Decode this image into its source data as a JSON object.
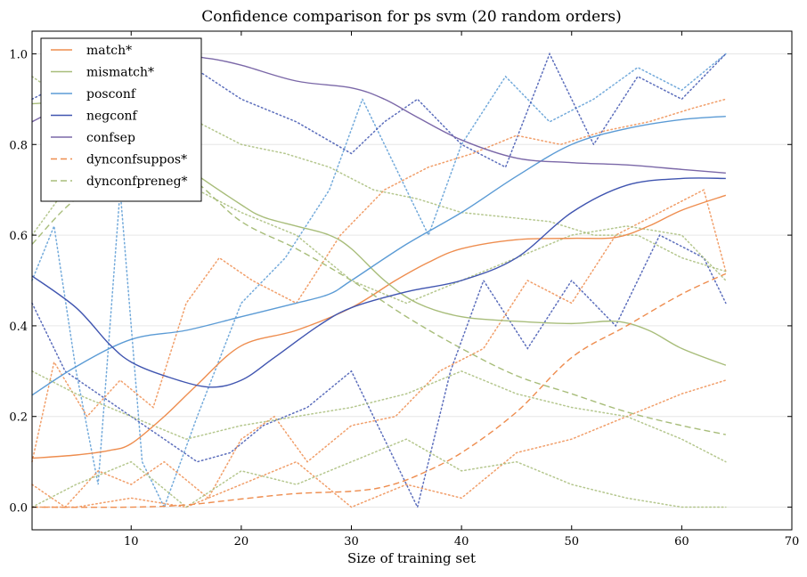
{
  "chart_data": {
    "type": "line",
    "title": "Confidence comparison for ps svm (20 random orders)",
    "xlabel": "Size of training set",
    "ylabel": "",
    "xlim": [
      1,
      70
    ],
    "ylim": [
      -0.05,
      1.05
    ],
    "xticks": [
      10,
      20,
      30,
      40,
      50,
      60,
      70
    ],
    "xtick_labels": [
      "10",
      "20",
      "30",
      "40",
      "50",
      "60",
      "70"
    ],
    "yticks": [
      0.0,
      0.2,
      0.4,
      0.6,
      0.8,
      1.0
    ],
    "ytick_labels": [
      "0.0",
      "0.2",
      "0.4",
      "0.6",
      "0.8",
      "1.0"
    ],
    "grid": "horizontal",
    "legend_position": "top-left",
    "series": [
      {
        "name": "match*",
        "color": "#ee8d4f",
        "style": "solid",
        "x": [
          1,
          5,
          8,
          10,
          13,
          16,
          20,
          25,
          30,
          34,
          37,
          40,
          45,
          50,
          54,
          57,
          60,
          64
        ],
        "y": [
          0.108,
          0.115,
          0.125,
          0.14,
          0.2,
          0.27,
          0.356,
          0.39,
          0.44,
          0.5,
          0.54,
          0.57,
          0.59,
          0.593,
          0.595,
          0.62,
          0.655,
          0.688
        ]
      },
      {
        "name": "mismatch*",
        "color": "#a8bd7a",
        "style": "solid",
        "x": [
          1,
          5,
          10,
          15,
          20,
          22,
          25,
          28,
          30,
          33,
          36,
          40,
          45,
          50,
          54,
          57,
          60,
          64
        ],
        "y": [
          0.89,
          0.89,
          0.85,
          0.75,
          0.667,
          0.64,
          0.62,
          0.6,
          0.57,
          0.5,
          0.45,
          0.42,
          0.41,
          0.405,
          0.41,
          0.39,
          0.35,
          0.313
        ]
      },
      {
        "name": "posconf",
        "color": "#5b9bd5",
        "style": "solid",
        "x": [
          1,
          5,
          10,
          15,
          20,
          25,
          28,
          30,
          35,
          40,
          45,
          50,
          55,
          60,
          64
        ],
        "y": [
          0.247,
          0.31,
          0.37,
          0.39,
          0.42,
          0.45,
          0.47,
          0.5,
          0.58,
          0.65,
          0.73,
          0.8,
          0.835,
          0.855,
          0.862
        ]
      },
      {
        "name": "negconf",
        "color": "#4055b0",
        "style": "solid",
        "x": [
          1,
          5,
          8,
          10,
          13,
          17,
          20,
          23,
          27,
          30,
          35,
          40,
          45,
          50,
          55,
          60,
          64
        ],
        "y": [
          0.51,
          0.44,
          0.36,
          0.32,
          0.29,
          0.265,
          0.28,
          0.33,
          0.4,
          0.44,
          0.475,
          0.5,
          0.55,
          0.65,
          0.71,
          0.725,
          0.725
        ]
      },
      {
        "name": "confsep",
        "color": "#7b68a8",
        "style": "solid",
        "x": [
          1,
          5,
          10,
          15,
          17,
          20,
          25,
          30,
          33,
          36,
          40,
          45,
          50,
          55,
          60,
          64
        ],
        "y": [
          0.85,
          0.9,
          0.96,
          0.99,
          0.99,
          0.975,
          0.94,
          0.925,
          0.9,
          0.86,
          0.81,
          0.77,
          0.76,
          0.755,
          0.745,
          0.737
        ]
      },
      {
        "name": "dynconfsuppos*",
        "color": "#ee8d4f",
        "style": "dashed",
        "x": [
          1,
          10,
          15,
          20,
          25,
          30,
          33,
          36,
          40,
          45,
          50,
          55,
          60,
          64
        ],
        "y": [
          0,
          0,
          0.005,
          0.018,
          0.03,
          0.035,
          0.045,
          0.07,
          0.12,
          0.21,
          0.33,
          0.4,
          0.47,
          0.515
        ]
      },
      {
        "name": "dynconfpreneg*",
        "color": "#a8bd7a",
        "style": "dashed",
        "x": [
          1,
          5,
          10,
          15,
          20,
          25,
          30,
          35,
          40,
          45,
          50,
          55,
          60,
          64
        ],
        "y": [
          0.58,
          0.68,
          0.74,
          0.73,
          0.63,
          0.57,
          0.5,
          0.42,
          0.35,
          0.29,
          0.25,
          0.21,
          0.18,
          0.16
        ]
      }
    ],
    "individual_runs": [
      {
        "color": "#5b9bd5",
        "x": [
          1,
          3,
          5,
          7,
          9,
          11,
          13,
          16,
          20,
          24,
          28,
          31,
          34,
          37,
          40,
          44,
          48,
          52,
          56,
          60,
          64
        ],
        "y": [
          0.5,
          0.62,
          0.3,
          0.05,
          0.7,
          0.1,
          0.0,
          0.2,
          0.45,
          0.55,
          0.7,
          0.9,
          0.75,
          0.6,
          0.8,
          0.95,
          0.85,
          0.9,
          0.97,
          0.92,
          1.0
        ]
      },
      {
        "color": "#4055b0",
        "x": [
          1,
          4,
          7,
          10,
          13,
          16,
          19,
          22,
          26,
          30,
          33,
          36,
          39,
          42,
          46,
          50,
          54,
          58,
          62,
          64
        ],
        "y": [
          0.45,
          0.3,
          0.25,
          0.2,
          0.15,
          0.1,
          0.12,
          0.18,
          0.22,
          0.3,
          0.15,
          0.0,
          0.3,
          0.5,
          0.35,
          0.5,
          0.4,
          0.6,
          0.55,
          0.45
        ]
      },
      {
        "color": "#4055b0",
        "x": [
          1,
          5,
          10,
          15,
          20,
          25,
          30,
          33,
          36,
          40,
          44,
          48,
          52,
          56,
          60,
          64
        ],
        "y": [
          0.9,
          0.95,
          1.0,
          0.98,
          0.9,
          0.85,
          0.78,
          0.85,
          0.9,
          0.8,
          0.75,
          1.0,
          0.8,
          0.95,
          0.9,
          1.0
        ]
      },
      {
        "color": "#ee8d4f",
        "x": [
          1,
          3,
          6,
          9,
          12,
          15,
          18,
          21,
          25,
          29,
          33,
          37,
          41,
          45,
          49,
          53,
          57,
          61,
          64
        ],
        "y": [
          0.1,
          0.32,
          0.2,
          0.28,
          0.22,
          0.45,
          0.55,
          0.5,
          0.45,
          0.6,
          0.7,
          0.75,
          0.78,
          0.82,
          0.8,
          0.83,
          0.85,
          0.88,
          0.9
        ]
      },
      {
        "color": "#ee8d4f",
        "x": [
          1,
          4,
          7,
          10,
          13,
          17,
          20,
          23,
          26,
          30,
          34,
          38,
          42,
          46,
          50,
          54,
          58,
          62,
          64
        ],
        "y": [
          0.05,
          0.0,
          0.08,
          0.05,
          0.1,
          0.02,
          0.15,
          0.2,
          0.1,
          0.18,
          0.2,
          0.3,
          0.35,
          0.5,
          0.45,
          0.6,
          0.65,
          0.7,
          0.52
        ]
      },
      {
        "color": "#ee8d4f",
        "x": [
          1,
          5,
          10,
          15,
          20,
          25,
          30,
          35,
          40,
          45,
          50,
          55,
          60,
          64
        ],
        "y": [
          0.0,
          0.0,
          0.02,
          0.0,
          0.05,
          0.1,
          0.0,
          0.05,
          0.02,
          0.12,
          0.15,
          0.2,
          0.25,
          0.28
        ]
      },
      {
        "color": "#a8bd7a",
        "x": [
          1,
          4,
          8,
          12,
          16,
          20,
          24,
          28,
          32,
          36,
          40,
          44,
          48,
          52,
          56,
          60,
          64
        ],
        "y": [
          0.95,
          0.9,
          0.88,
          0.9,
          0.85,
          0.8,
          0.78,
          0.75,
          0.7,
          0.68,
          0.65,
          0.64,
          0.63,
          0.6,
          0.6,
          0.55,
          0.52
        ]
      },
      {
        "color": "#a8bd7a",
        "x": [
          1,
          5,
          10,
          15,
          20,
          25,
          30,
          35,
          40,
          45,
          50,
          55,
          60,
          64
        ],
        "y": [
          0.3,
          0.25,
          0.2,
          0.15,
          0.18,
          0.2,
          0.22,
          0.25,
          0.3,
          0.25,
          0.22,
          0.2,
          0.15,
          0.1
        ]
      },
      {
        "color": "#a8bd7a",
        "x": [
          1,
          5,
          10,
          15,
          20,
          25,
          30,
          35,
          40,
          45,
          50,
          55,
          60,
          64
        ],
        "y": [
          0.0,
          0.05,
          0.1,
          0.0,
          0.08,
          0.05,
          0.1,
          0.15,
          0.08,
          0.1,
          0.05,
          0.02,
          0.0,
          0.0
        ]
      },
      {
        "color": "#a8bd7a",
        "x": [
          1,
          4,
          8,
          12,
          16,
          20,
          25,
          30,
          35,
          40,
          45,
          50,
          55,
          60,
          64
        ],
        "y": [
          0.6,
          0.7,
          0.8,
          0.75,
          0.7,
          0.65,
          0.6,
          0.5,
          0.45,
          0.5,
          0.55,
          0.6,
          0.62,
          0.6,
          0.5
        ]
      }
    ]
  }
}
